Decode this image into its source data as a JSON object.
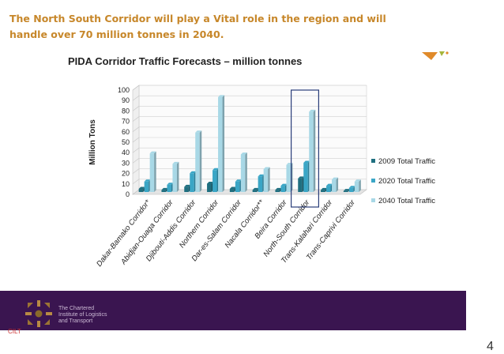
{
  "headline": "The North South Corridor will play a Vital role in the region and will handle over 70 million tonnes in 2040.",
  "logo": {
    "text_lines": [
      "The Chartered",
      "Institute of Logistics",
      "and Transport"
    ],
    "mark": "CILT"
  },
  "page_number": "4",
  "colors": {
    "headline": "#c7872a",
    "band": "#3a1550",
    "s2009": "#1f6f80",
    "s2020": "#3aa6c6",
    "s2040": "#a8d8e6"
  },
  "chart_data": {
    "type": "bar",
    "title": "PIDA Corridor Traffic Forecasts – million tonnes",
    "ylabel": "Million Tons",
    "ylim": [
      0,
      100
    ],
    "yticks": [
      0,
      10,
      20,
      30,
      40,
      50,
      60,
      70,
      80,
      90,
      100
    ],
    "grid": true,
    "legend_position": "right",
    "highlighted_category": "North-South Corridor",
    "categories": [
      "Dakar-Bamako Corridor*",
      "Abidjan-Ouaga Corridor",
      "Djibouti-Addis Corridor",
      "Northern Corridor",
      "Dar-es-Salam Corridor",
      "Nacala Corridor**",
      "Beira Corridor",
      "North-South Corridor",
      "Trans-Kalahari Corridor",
      "Trans-Caprivi Corridor"
    ],
    "series": [
      {
        "name": "2009 Total Traffic",
        "values": [
          3,
          2,
          5,
          8,
          3,
          2,
          2,
          13,
          2,
          1
        ]
      },
      {
        "name": "2020 Total Traffic",
        "values": [
          10,
          7,
          18,
          21,
          10,
          15,
          6,
          28,
          6,
          4
        ]
      },
      {
        "name": "2040 Total Traffic",
        "values": [
          37,
          27,
          57,
          91,
          36,
          22,
          26,
          77,
          12,
          10
        ]
      }
    ]
  }
}
